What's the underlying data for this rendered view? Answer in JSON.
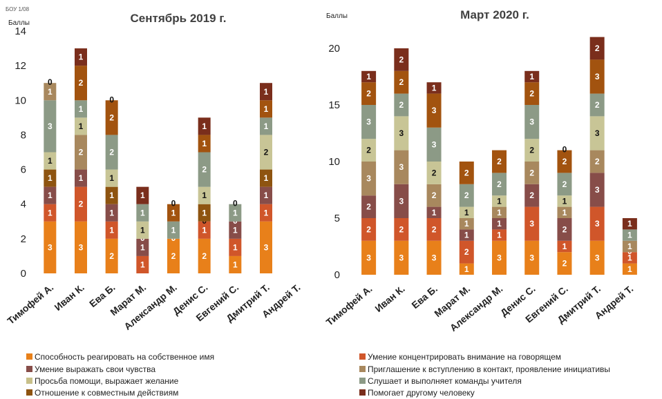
{
  "corner_label": "БОУ 1/08",
  "colors": [
    "#e8801a",
    "#d0562a",
    "#874d49",
    "#a8885e",
    "#c8c08a",
    "#8c9a86",
    "#c8c596",
    "#8e5410",
    "#a2530f",
    "#7a2e1c"
  ],
  "legend": [
    "Способность реагировать на собственное имя",
    "Умение концентрировать внимание на говорящем",
    "Умение выражать свои чувства",
    "Приглашение к вступлению в контакт, проявление инициативы",
    "Просьба помощи, выражает желание",
    "Слушает и выполняет команды учителя",
    "Отношение к совместным действиям",
    "Помогает другому человеку"
  ],
  "chart_data": [
    {
      "type": "bar",
      "stacked": true,
      "title": "Сентябрь 2019  г.",
      "ylabel": "Баллы",
      "ylim": [
        0,
        14
      ],
      "yticks": [
        0,
        2,
        4,
        6,
        8,
        10,
        12,
        14
      ],
      "categories": [
        "Тимофей А.",
        "Иван К.",
        "Ева Б.",
        "Марат М.",
        "Александр М.",
        "Денис С.",
        "Евгений С.",
        "Дмитрий Т.",
        "Андрей Т."
      ],
      "segments": [
        [
          [
            3,
            0,
            "3"
          ],
          [
            1,
            1,
            "1"
          ],
          [
            1,
            2,
            "1"
          ],
          [
            1,
            7,
            "1"
          ],
          [
            1,
            6,
            "1"
          ],
          [
            3,
            5,
            "3"
          ],
          [
            1,
            3,
            "1"
          ],
          [
            0,
            4,
            "0"
          ]
        ],
        [
          [
            3,
            0,
            "3"
          ],
          [
            2,
            1,
            "2"
          ],
          [
            1,
            2,
            "1"
          ],
          [
            2,
            3,
            "2"
          ],
          [
            1,
            6,
            "1"
          ],
          [
            1,
            5,
            "1"
          ],
          [
            2,
            8,
            "2"
          ],
          [
            1,
            9,
            "1"
          ]
        ],
        [
          [
            2,
            0,
            "2"
          ],
          [
            1,
            1,
            "1"
          ],
          [
            1,
            2,
            "1"
          ],
          [
            1,
            7,
            "1"
          ],
          [
            1,
            6,
            "1"
          ],
          [
            2,
            5,
            "2"
          ],
          [
            2,
            8,
            "2"
          ],
          [
            0,
            4,
            "0"
          ]
        ],
        [
          [
            0,
            0,
            "0"
          ],
          [
            1,
            1,
            "1"
          ],
          [
            1,
            2,
            "1"
          ],
          [
            0,
            7,
            "0"
          ],
          [
            1,
            6,
            "1"
          ],
          [
            1,
            5,
            "1"
          ],
          [
            1,
            9,
            "1"
          ]
        ],
        [
          [
            2,
            0,
            "2"
          ],
          [
            0,
            1,
            "0"
          ],
          [
            1,
            5,
            "1"
          ],
          [
            1,
            8,
            "1"
          ],
          [
            0,
            4,
            "0"
          ]
        ],
        [
          [
            2,
            0,
            "2"
          ],
          [
            1,
            1,
            "1"
          ],
          [
            0,
            4,
            "0"
          ],
          [
            1,
            7,
            "1"
          ],
          [
            1,
            6,
            "1"
          ],
          [
            2,
            5,
            "2"
          ],
          [
            1,
            8,
            "1"
          ],
          [
            1,
            9,
            "1"
          ]
        ],
        [
          [
            1,
            0,
            "1"
          ],
          [
            1,
            1,
            "1"
          ],
          [
            1,
            2,
            "1"
          ],
          [
            0,
            7,
            "0"
          ],
          [
            1,
            5,
            "1"
          ],
          [
            0,
            4,
            "0"
          ]
        ],
        [
          [
            3,
            0,
            "3"
          ],
          [
            1,
            1,
            "1"
          ],
          [
            1,
            2,
            "1"
          ],
          [
            1,
            7,
            "1"
          ],
          [
            2,
            6,
            "2"
          ],
          [
            1,
            5,
            "1"
          ],
          [
            1,
            8,
            "1"
          ],
          [
            1,
            9,
            "1"
          ]
        ],
        [
          [
            0,
            0,
            "0"
          ]
        ]
      ]
    },
    {
      "type": "bar",
      "stacked": true,
      "title": "Март 2020  г.",
      "ylabel": "Баллы",
      "ylim": [
        0,
        20
      ],
      "yticks": [
        0,
        5,
        10,
        15,
        20
      ],
      "categories": [
        "Тимофей А.",
        "Иван К.",
        "Ева Б.",
        "Марат М.",
        "Александр М.",
        "Денис С.",
        "Евгений С.",
        "Дмитрий Т.",
        "Андрей Т."
      ],
      "segments": [
        [
          [
            3,
            0,
            "3"
          ],
          [
            2,
            1,
            "2"
          ],
          [
            2,
            2,
            "2"
          ],
          [
            3,
            3,
            "3"
          ],
          [
            2,
            6,
            "2"
          ],
          [
            3,
            5,
            "3"
          ],
          [
            2,
            8,
            "2"
          ],
          [
            1,
            9,
            "1"
          ]
        ],
        [
          [
            3,
            0,
            "3"
          ],
          [
            2,
            1,
            "2"
          ],
          [
            3,
            2,
            "3"
          ],
          [
            3,
            3,
            "3"
          ],
          [
            3,
            6,
            "3"
          ],
          [
            2,
            5,
            "2"
          ],
          [
            2,
            8,
            "2"
          ],
          [
            2,
            9,
            "2"
          ]
        ],
        [
          [
            3,
            0,
            "3"
          ],
          [
            2,
            1,
            "2"
          ],
          [
            1,
            2,
            "1"
          ],
          [
            2,
            3,
            "2"
          ],
          [
            2,
            6,
            "2"
          ],
          [
            3,
            5,
            "3"
          ],
          [
            3,
            8,
            "3"
          ],
          [
            1,
            9,
            "1"
          ]
        ],
        [
          [
            1,
            0,
            "1"
          ],
          [
            2,
            1,
            "2"
          ],
          [
            1,
            2,
            "1"
          ],
          [
            1,
            3,
            "1"
          ],
          [
            1,
            6,
            "1"
          ],
          [
            2,
            5,
            "2"
          ],
          [
            2,
            8,
            "2"
          ]
        ],
        [
          [
            3,
            0,
            "3"
          ],
          [
            1,
            1,
            "1"
          ],
          [
            1,
            2,
            "1"
          ],
          [
            1,
            3,
            "1"
          ],
          [
            1,
            6,
            "1"
          ],
          [
            2,
            5,
            "2"
          ],
          [
            2,
            8,
            "2"
          ]
        ],
        [
          [
            3,
            0,
            "3"
          ],
          [
            3,
            1,
            "3"
          ],
          [
            2,
            2,
            "2"
          ],
          [
            2,
            3,
            "2"
          ],
          [
            2,
            6,
            "2"
          ],
          [
            3,
            5,
            "3"
          ],
          [
            2,
            8,
            "2"
          ],
          [
            1,
            9,
            "1"
          ]
        ],
        [
          [
            2,
            0,
            "2"
          ],
          [
            1,
            1,
            "1"
          ],
          [
            2,
            2,
            "2"
          ],
          [
            1,
            3,
            "1"
          ],
          [
            1,
            6,
            "1"
          ],
          [
            2,
            5,
            "2"
          ],
          [
            2,
            8,
            "2"
          ],
          [
            0,
            4,
            "0"
          ]
        ],
        [
          [
            3,
            0,
            "3"
          ],
          [
            3,
            1,
            "3"
          ],
          [
            3,
            2,
            "3"
          ],
          [
            2,
            3,
            "2"
          ],
          [
            3,
            6,
            "3"
          ],
          [
            2,
            5,
            "2"
          ],
          [
            3,
            8,
            "3"
          ],
          [
            2,
            9,
            "2"
          ]
        ],
        [
          [
            1,
            0,
            "1"
          ],
          [
            1,
            1,
            "1"
          ],
          [
            0,
            2,
            "0"
          ],
          [
            1,
            3,
            "1"
          ],
          [
            1,
            5,
            "1"
          ],
          [
            1,
            9,
            "1"
          ]
        ]
      ]
    }
  ]
}
